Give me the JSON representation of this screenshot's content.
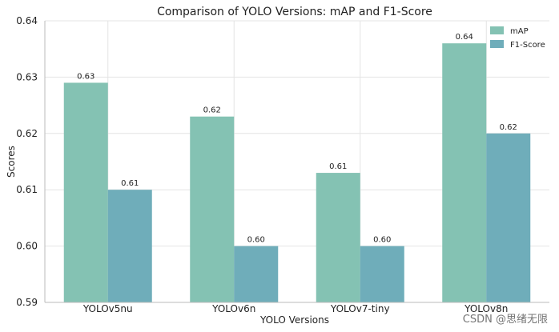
{
  "chart_data": {
    "type": "bar",
    "title": "Comparison of YOLO Versions: mAP and F1-Score",
    "xlabel": "YOLO Versions",
    "ylabel": "Scores",
    "categories": [
      "YOLOv5nu",
      "YOLOv6n",
      "YOLOv7-tiny",
      "YOLOv8n"
    ],
    "ylim": [
      0.59,
      0.64
    ],
    "yticks": [
      "0.59",
      "0.60",
      "0.61",
      "0.62",
      "0.63",
      "0.64"
    ],
    "grid": true,
    "legend_position": "top-right",
    "series": [
      {
        "name": "mAP",
        "values": [
          0.629,
          0.623,
          0.613,
          0.636
        ],
        "labels": [
          "0.63",
          "0.62",
          "0.61",
          "0.64"
        ],
        "color": "#84c2b3"
      },
      {
        "name": "F1-Score",
        "values": [
          0.61,
          0.6,
          0.6,
          0.62
        ],
        "labels": [
          "0.61",
          "0.60",
          "0.60",
          "0.62"
        ],
        "color": "#6fadba"
      }
    ]
  },
  "watermark": "CSDN @思绪无限"
}
